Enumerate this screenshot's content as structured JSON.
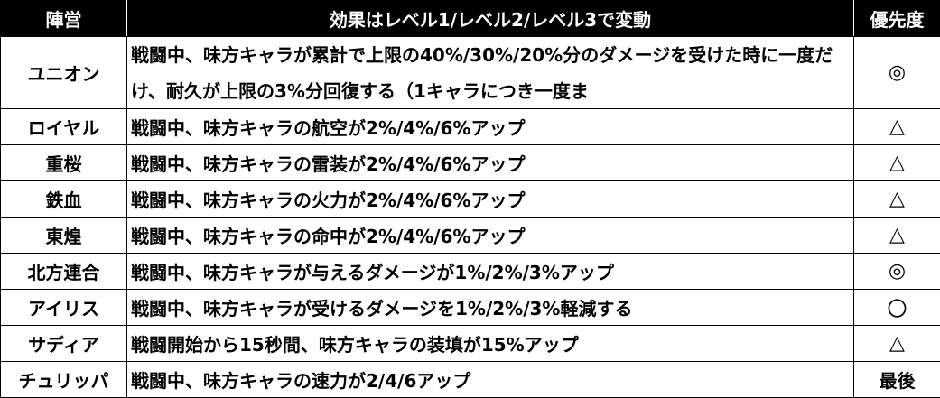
{
  "headers": [
    "陣営",
    "効果はレベル1/レベル2/レベル3で変動",
    "優先度"
  ],
  "rows": [
    {
      "faction": "ユニオン",
      "effect": "戦闘中、味方キャラが累計で上限の40%/30%/20%分のダメージを受けた時に一度だけ、耐久が上限の3%分回復する（1キャラにつき一度ま",
      "priority": "◎"
    },
    {
      "faction": "ロイヤル",
      "effect": "戦闘中、味方キャラの航空が2%/4%/6%アップ",
      "priority": "△"
    },
    {
      "faction": "重桜",
      "effect": "戦闘中、味方キャラの雷装が2%/4%/6%アップ",
      "priority": "△"
    },
    {
      "faction": "鉄血",
      "effect": "戦闘中、味方キャラの火力が2%/4%/6%アップ",
      "priority": "△"
    },
    {
      "faction": "東煌",
      "effect": "戦闘中、味方キャラの命中が2%/4%/6%アップ",
      "priority": "△"
    },
    {
      "faction": "北方連合",
      "effect": "戦闘中、味方キャラが与えるダメージが1%/2%/3%アップ",
      "priority": "◎"
    },
    {
      "faction": "アイリス",
      "effect": "戦闘中、味方キャラが受けるダメージを1%/2%/3%軽減する",
      "priority": "〇"
    },
    {
      "faction": "サディア",
      "effect": "戦闘開始から15秒間、味方キャラの装填が15%アップ",
      "priority": "△"
    },
    {
      "faction": "チュリッパ",
      "effect": "戦闘中、味方キャラの速力が2/4/6アップ",
      "priority": "最後"
    }
  ]
}
